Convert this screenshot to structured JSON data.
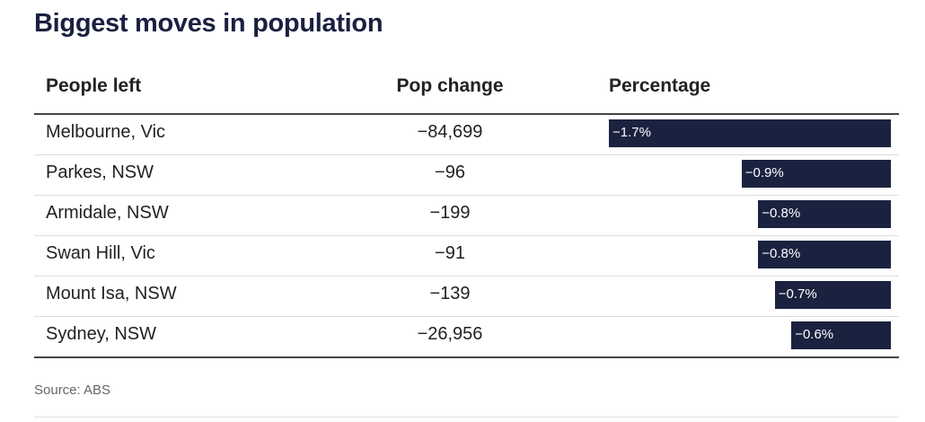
{
  "title": "Biggest moves in population",
  "columns": {
    "place": "People left",
    "change": "Pop change",
    "percentage": "Percentage"
  },
  "source": "Source: ABS",
  "colors": {
    "bar": "#1b2240",
    "title": "#1a2040"
  },
  "chart_data": {
    "type": "bar",
    "title": "Biggest moves in population",
    "categories": [
      "Melbourne, Vic",
      "Parkes, NSW",
      "Armidale, NSW",
      "Swan Hill, Vic",
      "Mount Isa, NSW",
      "Sydney, NSW"
    ],
    "pop_change": [
      "−84,699",
      "−96",
      "−199",
      "−91",
      "−139",
      "−26,956"
    ],
    "values": [
      -1.7,
      -0.9,
      -0.8,
      -0.8,
      -0.7,
      -0.6
    ],
    "labels": [
      "−1.7%",
      "−0.9%",
      "−0.8%",
      "−0.8%",
      "−0.7%",
      "−0.6%"
    ],
    "source": "Source: ABS"
  }
}
